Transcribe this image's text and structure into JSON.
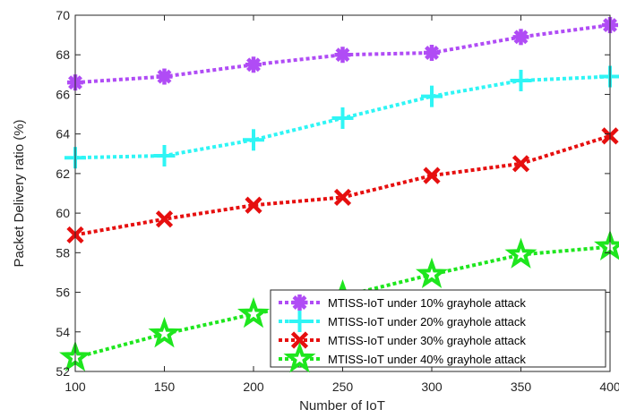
{
  "chart_data": {
    "type": "line",
    "xlabel": "Number of IoT",
    "ylabel": "Packet Delivery ratio (%)",
    "x": [
      100,
      150,
      200,
      250,
      300,
      350,
      400
    ],
    "xlim": [
      100,
      400
    ],
    "ylim": [
      52,
      70
    ],
    "xticks": [
      "100",
      "150",
      "200",
      "250",
      "300",
      "350",
      "400"
    ],
    "yticks": [
      "52",
      "54",
      "56",
      "58",
      "60",
      "62",
      "64",
      "66",
      "68",
      "70"
    ],
    "grid": false,
    "legend_position": "bottom-right",
    "series": [
      {
        "name": "MTISS-IoT under 10% grayhole attack",
        "color": "#b04cf5",
        "marker": "asterisk",
        "values": [
          66.6,
          66.9,
          67.5,
          68.0,
          68.1,
          68.9,
          69.5
        ]
      },
      {
        "name": "MTISS-IoT under 20% grayhole attack",
        "color": "#2ff5f5",
        "marker": "plus",
        "values": [
          62.8,
          62.9,
          63.7,
          64.8,
          65.9,
          66.7,
          66.9
        ]
      },
      {
        "name": "MTISS-IoT under 30% grayhole attack",
        "color": "#e60f0f",
        "marker": "x",
        "values": [
          58.9,
          59.7,
          60.4,
          60.8,
          61.9,
          62.5,
          63.9
        ]
      },
      {
        "name": "MTISS-IoT under 40% grayhole attack",
        "color": "#1ee61e",
        "marker": "star",
        "values": [
          52.7,
          53.9,
          54.9,
          55.8,
          56.9,
          57.9,
          58.3
        ]
      }
    ]
  }
}
